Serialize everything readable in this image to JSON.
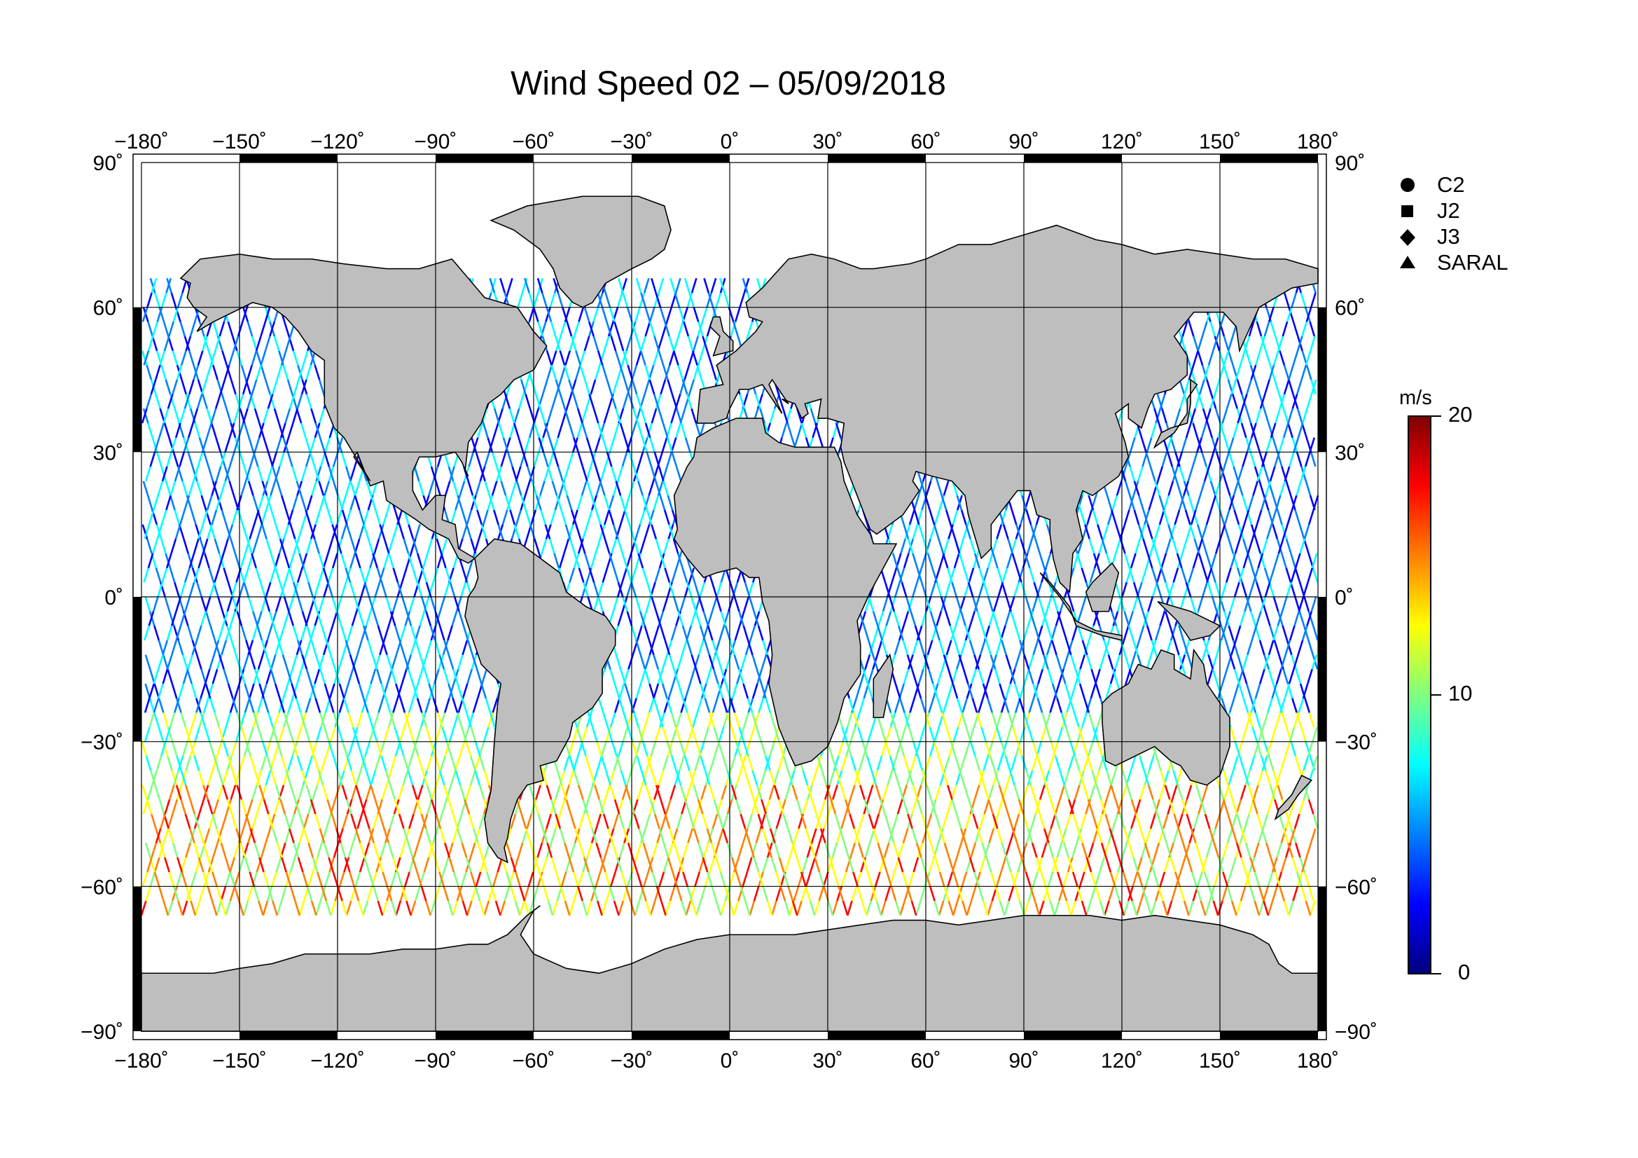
{
  "title": "Wind Speed 02 – 05/09/2018",
  "map": {
    "lon_ticks": [
      "−180˚",
      "−150˚",
      "−120˚",
      "−90˚",
      "−60˚",
      "−30˚",
      "0˚",
      "30˚",
      "60˚",
      "90˚",
      "120˚",
      "150˚",
      "180˚"
    ],
    "lat_ticks_left": [
      "90˚",
      "60˚",
      "30˚",
      "0˚",
      "−30˚",
      "−60˚",
      "−90˚"
    ],
    "lat_ticks_right": [
      "90˚",
      "60˚",
      "30˚",
      "0˚",
      "−30˚",
      "−60˚",
      "−90˚"
    ],
    "land_color": "#bebebe",
    "ocean_color": "#ffffff",
    "grid_color": "#000000"
  },
  "legend": {
    "items": [
      {
        "label": "C2",
        "symbol": "circle-icon"
      },
      {
        "label": "J2",
        "symbol": "square-icon"
      },
      {
        "label": "J3",
        "symbol": "diamond-icon"
      },
      {
        "label": "SARAL",
        "symbol": "triangle-icon"
      }
    ]
  },
  "colorbar": {
    "unit": "m/s",
    "min_label": "0",
    "mid_label": "10",
    "max_label": "20",
    "colors": [
      "#00007f",
      "#0000ff",
      "#007fff",
      "#00ffff",
      "#7fff7f",
      "#ffff00",
      "#ff7f00",
      "#ff0000",
      "#7f0000"
    ]
  }
}
